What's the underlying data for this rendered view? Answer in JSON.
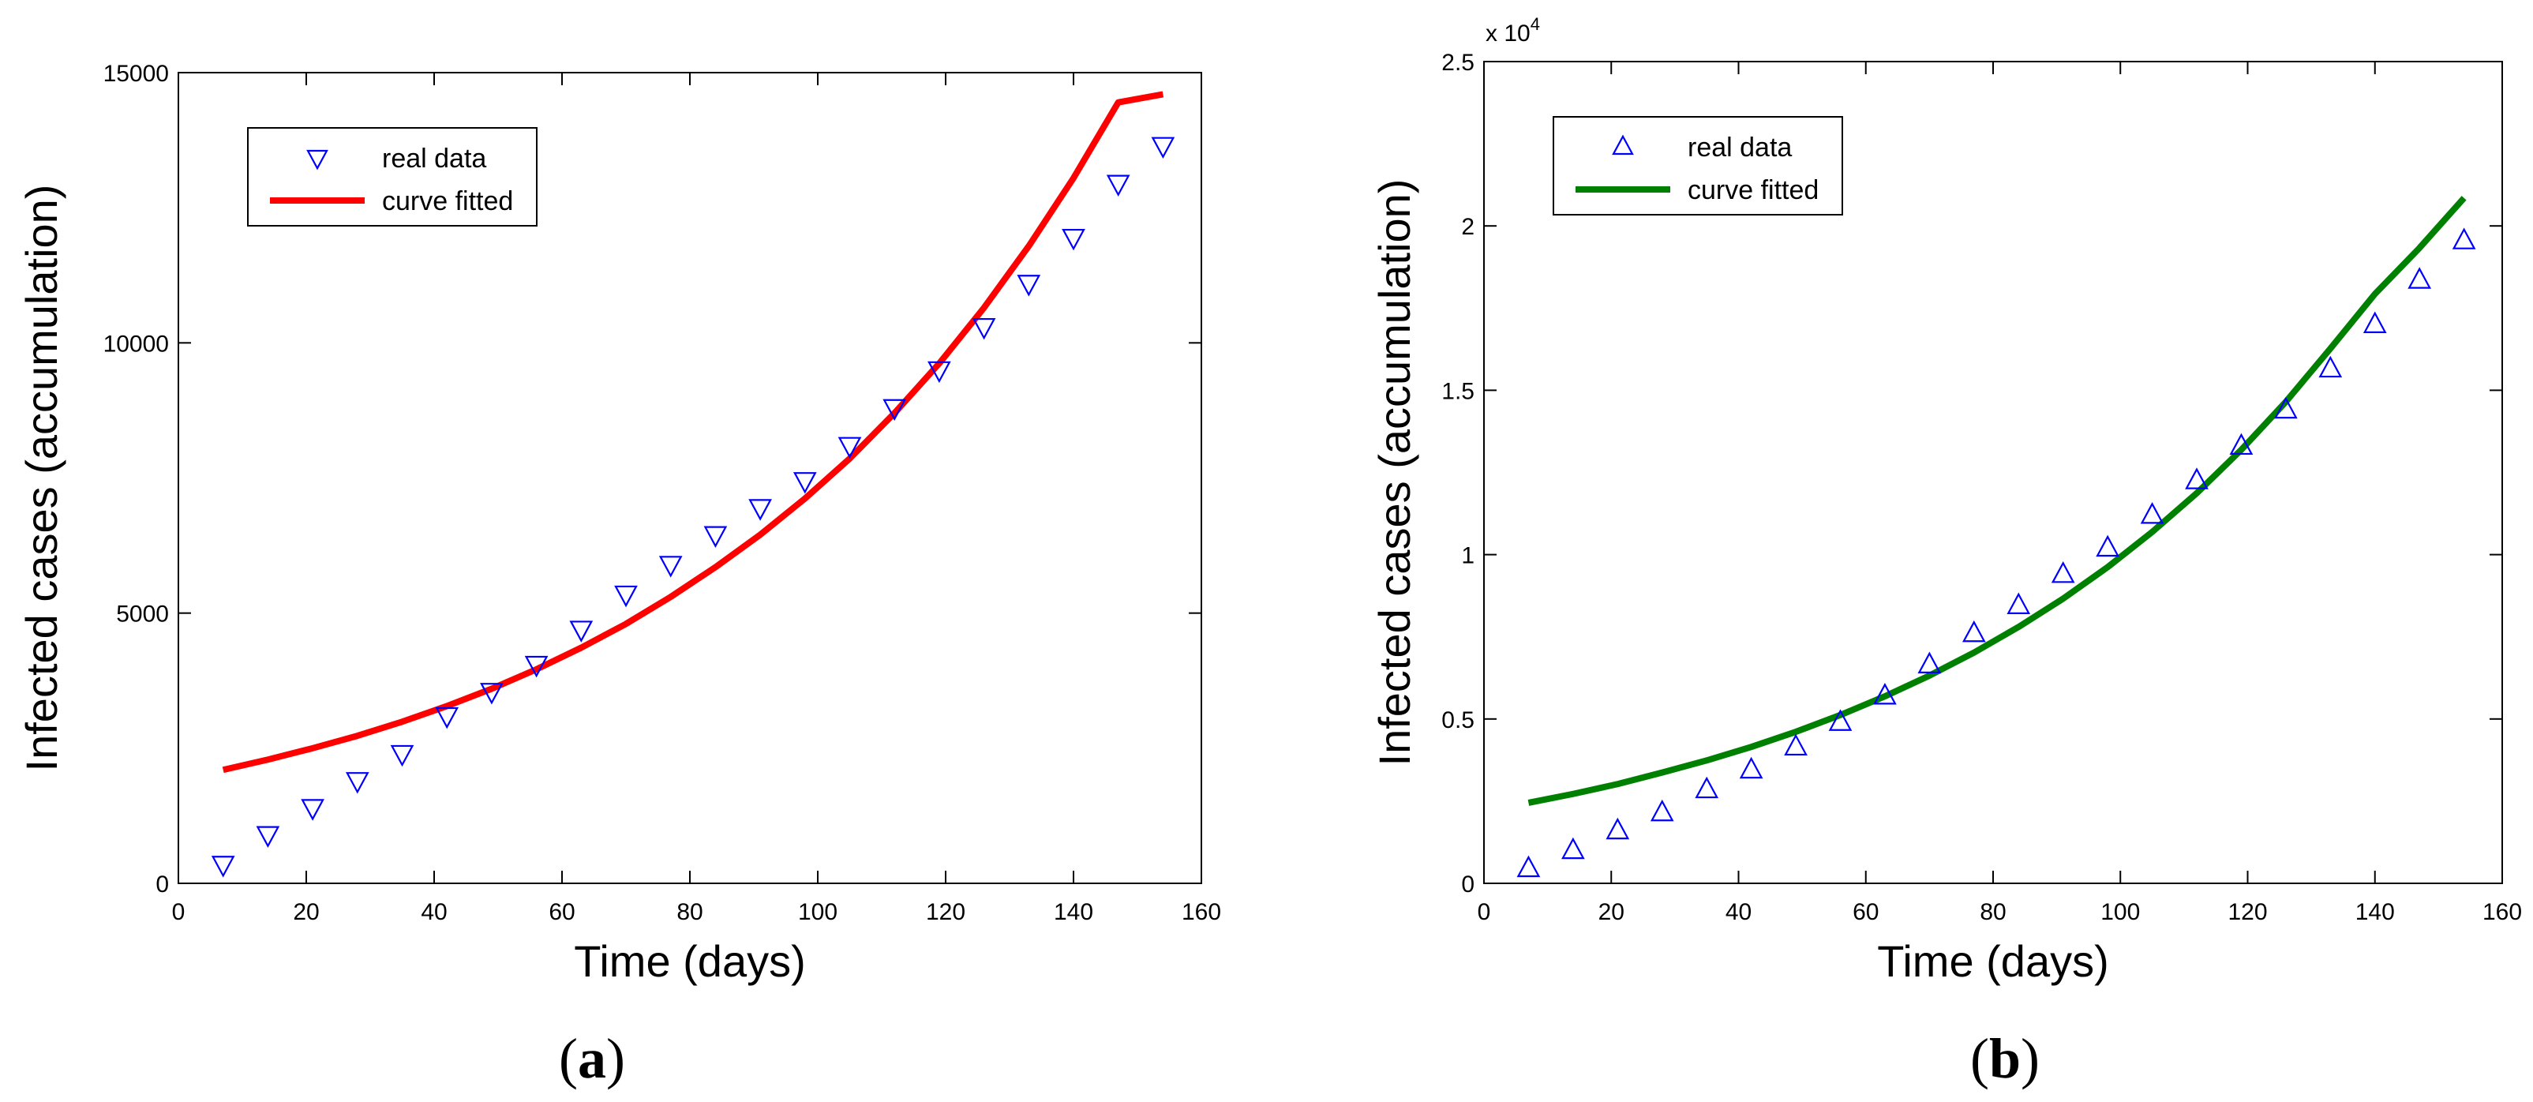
{
  "chart_data": [
    {
      "type": "scatter",
      "panel": "a",
      "panel_label": [
        "(",
        "a",
        ")"
      ],
      "xlabel": "Time (days)",
      "ylabel": "Infected cases (accumulation)",
      "xlim": [
        0,
        160
      ],
      "ylim": [
        0,
        15000
      ],
      "xticks": [
        0,
        20,
        40,
        60,
        80,
        100,
        120,
        140,
        160
      ],
      "yticks": [
        0,
        5000,
        10000,
        15000
      ],
      "ytick_labels": [
        "0",
        "5000",
        "10000",
        "15000"
      ],
      "y_exponent": "",
      "grid": false,
      "legend_position": "top-left",
      "series": [
        {
          "name": "real data",
          "kind": "marker",
          "marker": "triangle-down",
          "color": "#0000ff",
          "x": [
            7,
            14,
            21,
            28,
            35,
            42,
            49,
            56,
            63,
            70,
            77,
            84,
            91,
            98,
            105,
            112,
            119,
            126,
            133,
            140,
            147,
            154
          ],
          "y": [
            350,
            900,
            1400,
            1900,
            2400,
            3100,
            3550,
            4050,
            4700,
            5350,
            5900,
            6450,
            6950,
            7450,
            8100,
            8800,
            9500,
            10300,
            11100,
            11950,
            12950,
            13650
          ]
        },
        {
          "name": "curve fitted",
          "kind": "line",
          "color": "#ff0000",
          "x": [
            7,
            14,
            21,
            28,
            35,
            42,
            49,
            56,
            63,
            70,
            77,
            84,
            91,
            98,
            105,
            112,
            119,
            126,
            133,
            140,
            147,
            154
          ],
          "y": [
            2100,
            2290,
            2500,
            2730,
            2990,
            3280,
            3600,
            3960,
            4360,
            4800,
            5300,
            5850,
            6450,
            7120,
            7860,
            8700,
            9620,
            10650,
            11790,
            13050,
            14450,
            14600
          ]
        }
      ]
    },
    {
      "type": "scatter",
      "panel": "b",
      "panel_label": [
        "(",
        "b",
        ")"
      ],
      "xlabel": "Time (days)",
      "ylabel": "Infected cases (accumulation)",
      "xlim": [
        0,
        160
      ],
      "ylim": [
        0,
        25000
      ],
      "xticks": [
        0,
        20,
        40,
        60,
        80,
        100,
        120,
        140,
        160
      ],
      "yticks": [
        0,
        5000,
        10000,
        15000,
        20000,
        25000
      ],
      "ytick_labels": [
        "0",
        "0.5",
        "1",
        "1.5",
        "2",
        "2.5"
      ],
      "y_exponent": "x 10",
      "y_exponent_power": "4",
      "grid": false,
      "legend_position": "top-left",
      "series": [
        {
          "name": "real data",
          "kind": "marker",
          "marker": "triangle-up",
          "color": "#0000ff",
          "x": [
            7,
            14,
            21,
            28,
            35,
            42,
            49,
            56,
            63,
            70,
            77,
            84,
            91,
            98,
            105,
            112,
            119,
            126,
            133,
            140,
            147,
            154
          ],
          "y": [
            450,
            1000,
            1600,
            2150,
            2850,
            3450,
            4150,
            4900,
            5700,
            6650,
            7600,
            8450,
            9400,
            10200,
            11200,
            12250,
            13300,
            14400,
            15650,
            17000,
            18350,
            19550
          ]
        },
        {
          "name": "curve fitted",
          "kind": "line",
          "color": "#008000",
          "x": [
            7,
            14,
            21,
            28,
            35,
            42,
            49,
            56,
            63,
            70,
            77,
            84,
            91,
            98,
            105,
            112,
            119,
            126,
            133,
            140,
            147,
            154
          ],
          "y": [
            2450,
            2720,
            3020,
            3370,
            3740,
            4150,
            4610,
            5120,
            5690,
            6320,
            7020,
            7800,
            8660,
            9620,
            10690,
            11870,
            13190,
            14650,
            16270,
            17930,
            19330,
            20850
          ]
        }
      ]
    }
  ]
}
